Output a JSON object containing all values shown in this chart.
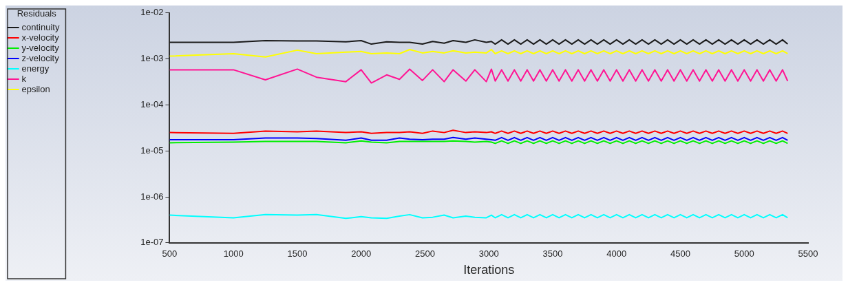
{
  "chart_data": {
    "type": "line",
    "legend_title": "Residuals",
    "xlabel": "Iterations",
    "log": "y",
    "legend": "top left",
    "grid": false,
    "marker": "none",
    "line_style": "solid",
    "xlim": [
      500,
      5500
    ],
    "xticks": [
      500,
      1000,
      1500,
      2000,
      2500,
      3000,
      3500,
      4000,
      4500,
      5000,
      5500
    ],
    "ylim": [
      1e-07,
      0.01
    ],
    "yticks": [
      {
        "value": 1e-07,
        "label": "1e-07"
      },
      {
        "value": 1e-06,
        "label": "1e-06"
      },
      {
        "value": 1e-05,
        "label": "1e-05"
      },
      {
        "value": 0.0001,
        "label": "1e-04"
      },
      {
        "value": 0.001,
        "label": "1e-03"
      },
      {
        "value": 0.01,
        "label": "1e-02"
      }
    ],
    "x": [
      500,
      1000,
      1250,
      1500,
      1650,
      1880,
      2000,
      2080,
      2200,
      2300,
      2380,
      2480,
      2560,
      2650,
      2720,
      2820,
      2890,
      2980,
      3020,
      3050,
      3100,
      3150,
      3200,
      3250,
      3300,
      3350,
      3400,
      3450,
      3500,
      3550,
      3600,
      3650,
      3700,
      3750,
      3800,
      3850,
      3900,
      3950,
      4000,
      4050,
      4100,
      4150,
      4200,
      4250,
      4300,
      4350,
      4400,
      4450,
      4500,
      4550,
      4600,
      4650,
      4700,
      4750,
      4800,
      4850,
      4900,
      4950,
      5000,
      5050,
      5100,
      5150,
      5200,
      5250,
      5300,
      5340
    ],
    "series": [
      {
        "name": "continuity",
        "color": "#1a1a1a",
        "values": [
          0.0023,
          0.0023,
          0.0025,
          0.00245,
          0.00245,
          0.00235,
          0.0025,
          0.0021,
          0.00235,
          0.0023,
          0.0023,
          0.0021,
          0.0024,
          0.0022,
          0.0025,
          0.0023,
          0.0026,
          0.0023,
          0.0024,
          0.0021,
          0.0026,
          0.0021,
          0.0026,
          0.0021,
          0.0026,
          0.0021,
          0.0026,
          0.0021,
          0.0026,
          0.0021,
          0.0026,
          0.0021,
          0.0026,
          0.0021,
          0.0026,
          0.0021,
          0.0026,
          0.0021,
          0.0026,
          0.0021,
          0.0026,
          0.0021,
          0.0026,
          0.0021,
          0.0026,
          0.0021,
          0.0026,
          0.0021,
          0.0026,
          0.0021,
          0.0026,
          0.0021,
          0.0026,
          0.0021,
          0.0026,
          0.0021,
          0.0026,
          0.0021,
          0.0026,
          0.0021,
          0.0026,
          0.0021,
          0.0026,
          0.0021,
          0.0026,
          0.0021
        ]
      },
      {
        "name": "x-velocity",
        "color": "#ff0000",
        "values": [
          2.5e-05,
          2.4e-05,
          2.7e-05,
          2.6e-05,
          2.7e-05,
          2.5e-05,
          2.6e-05,
          2.4e-05,
          2.5e-05,
          2.5e-05,
          2.6e-05,
          2.4e-05,
          2.7e-05,
          2.5e-05,
          2.8e-05,
          2.5e-05,
          2.6e-05,
          2.5e-05,
          2.6e-05,
          2.4e-05,
          2.7e-05,
          2.4e-05,
          2.7e-05,
          2.4e-05,
          2.7e-05,
          2.4e-05,
          2.7e-05,
          2.4e-05,
          2.7e-05,
          2.4e-05,
          2.7e-05,
          2.4e-05,
          2.7e-05,
          2.4e-05,
          2.7e-05,
          2.4e-05,
          2.7e-05,
          2.4e-05,
          2.7e-05,
          2.4e-05,
          2.7e-05,
          2.4e-05,
          2.7e-05,
          2.4e-05,
          2.7e-05,
          2.4e-05,
          2.7e-05,
          2.4e-05,
          2.7e-05,
          2.4e-05,
          2.7e-05,
          2.4e-05,
          2.7e-05,
          2.4e-05,
          2.7e-05,
          2.4e-05,
          2.7e-05,
          2.4e-05,
          2.7e-05,
          2.4e-05,
          2.7e-05,
          2.4e-05,
          2.7e-05,
          2.4e-05,
          2.7e-05,
          2.4e-05
        ]
      },
      {
        "name": "y-velocity",
        "color": "#00ee00",
        "values": [
          1.5e-05,
          1.55e-05,
          1.6e-05,
          1.6e-05,
          1.6e-05,
          1.5e-05,
          1.65e-05,
          1.55e-05,
          1.5e-05,
          1.6e-05,
          1.6e-05,
          1.6e-05,
          1.6e-05,
          1.6e-05,
          1.65e-05,
          1.6e-05,
          1.55e-05,
          1.6e-05,
          1.55e-05,
          1.45e-05,
          1.65e-05,
          1.45e-05,
          1.65e-05,
          1.45e-05,
          1.65e-05,
          1.45e-05,
          1.65e-05,
          1.45e-05,
          1.65e-05,
          1.45e-05,
          1.65e-05,
          1.45e-05,
          1.65e-05,
          1.45e-05,
          1.65e-05,
          1.45e-05,
          1.65e-05,
          1.45e-05,
          1.65e-05,
          1.45e-05,
          1.65e-05,
          1.45e-05,
          1.65e-05,
          1.45e-05,
          1.65e-05,
          1.45e-05,
          1.65e-05,
          1.45e-05,
          1.65e-05,
          1.45e-05,
          1.65e-05,
          1.45e-05,
          1.65e-05,
          1.45e-05,
          1.65e-05,
          1.45e-05,
          1.65e-05,
          1.45e-05,
          1.65e-05,
          1.45e-05,
          1.65e-05,
          1.45e-05,
          1.65e-05,
          1.45e-05,
          1.65e-05,
          1.45e-05
        ]
      },
      {
        "name": "z-velocity",
        "color": "#0000ff",
        "values": [
          1.75e-05,
          1.75e-05,
          1.9e-05,
          1.9e-05,
          1.85e-05,
          1.7e-05,
          1.9e-05,
          1.7e-05,
          1.7e-05,
          1.9e-05,
          1.8e-05,
          1.75e-05,
          1.8e-05,
          1.8e-05,
          1.95e-05,
          1.8e-05,
          1.9e-05,
          1.8e-05,
          1.75e-05,
          1.7e-05,
          1.95e-05,
          1.7e-05,
          1.95e-05,
          1.7e-05,
          1.95e-05,
          1.7e-05,
          1.95e-05,
          1.7e-05,
          1.95e-05,
          1.7e-05,
          1.95e-05,
          1.7e-05,
          1.95e-05,
          1.7e-05,
          1.95e-05,
          1.7e-05,
          1.95e-05,
          1.7e-05,
          1.95e-05,
          1.7e-05,
          1.95e-05,
          1.7e-05,
          1.95e-05,
          1.7e-05,
          1.95e-05,
          1.7e-05,
          1.95e-05,
          1.7e-05,
          1.95e-05,
          1.7e-05,
          1.95e-05,
          1.7e-05,
          1.95e-05,
          1.7e-05,
          1.95e-05,
          1.7e-05,
          1.95e-05,
          1.7e-05,
          1.95e-05,
          1.7e-05,
          1.95e-05,
          1.7e-05,
          1.95e-05,
          1.7e-05,
          1.95e-05,
          1.7e-05
        ]
      },
      {
        "name": "energy",
        "color": "#00ffff",
        "values": [
          4e-07,
          3.5e-07,
          4.1e-07,
          4e-07,
          4.1e-07,
          3.4e-07,
          3.7e-07,
          3.5e-07,
          3.4e-07,
          3.8e-07,
          4.1e-07,
          3.5e-07,
          3.6e-07,
          4e-07,
          3.5e-07,
          3.8e-07,
          3.6e-07,
          3.5e-07,
          4e-07,
          3.5e-07,
          4.1e-07,
          3.5e-07,
          4.1e-07,
          3.5e-07,
          4.1e-07,
          3.5e-07,
          4.1e-07,
          3.5e-07,
          4.1e-07,
          3.5e-07,
          4.1e-07,
          3.5e-07,
          4.1e-07,
          3.5e-07,
          4.1e-07,
          3.5e-07,
          4.1e-07,
          3.5e-07,
          4.1e-07,
          3.5e-07,
          4.1e-07,
          3.5e-07,
          4.1e-07,
          3.5e-07,
          4.1e-07,
          3.5e-07,
          4.1e-07,
          3.5e-07,
          4.1e-07,
          3.5e-07,
          4.1e-07,
          3.5e-07,
          4.1e-07,
          3.5e-07,
          4.1e-07,
          3.5e-07,
          4.1e-07,
          3.5e-07,
          4.1e-07,
          3.5e-07,
          4.1e-07,
          3.5e-07,
          4.1e-07,
          3.5e-07,
          4.1e-07,
          3.5e-07
        ]
      },
      {
        "name": "k",
        "color": "#ff1493",
        "values": [
          0.00058,
          0.00058,
          0.00035,
          0.0006,
          0.0004,
          0.00032,
          0.00058,
          0.0003,
          0.00045,
          0.00036,
          0.0006,
          0.00034,
          0.00058,
          0.00032,
          0.00058,
          0.00033,
          0.00058,
          0.00032,
          0.0006,
          0.00033,
          0.00058,
          0.00033,
          0.00058,
          0.00033,
          0.00058,
          0.00033,
          0.00058,
          0.00033,
          0.00058,
          0.00033,
          0.00058,
          0.00033,
          0.00058,
          0.00033,
          0.00058,
          0.00033,
          0.00058,
          0.00033,
          0.00058,
          0.00033,
          0.00058,
          0.00033,
          0.00058,
          0.00033,
          0.00058,
          0.00033,
          0.00058,
          0.00033,
          0.00058,
          0.00033,
          0.00058,
          0.00033,
          0.00058,
          0.00033,
          0.00058,
          0.00033,
          0.00058,
          0.00033,
          0.00058,
          0.00033,
          0.00058,
          0.00033,
          0.00058,
          0.00033,
          0.00058,
          0.00033
        ]
      },
      {
        "name": "epsilon",
        "color": "#ffff00",
        "values": [
          0.00115,
          0.0013,
          0.0011,
          0.00155,
          0.0013,
          0.0014,
          0.00145,
          0.0013,
          0.00135,
          0.0013,
          0.0016,
          0.00135,
          0.00145,
          0.00135,
          0.0015,
          0.00135,
          0.0014,
          0.00135,
          0.0016,
          0.0013,
          0.0015,
          0.0013,
          0.0015,
          0.0013,
          0.0015,
          0.0013,
          0.0015,
          0.0013,
          0.0015,
          0.0013,
          0.0015,
          0.0013,
          0.0015,
          0.0013,
          0.0015,
          0.0013,
          0.0015,
          0.0013,
          0.0015,
          0.0013,
          0.0015,
          0.0013,
          0.0015,
          0.0013,
          0.0015,
          0.0013,
          0.0015,
          0.0013,
          0.0015,
          0.0013,
          0.0015,
          0.0013,
          0.0015,
          0.0013,
          0.0015,
          0.0013,
          0.0015,
          0.0013,
          0.0015,
          0.0013,
          0.0015,
          0.0013,
          0.0015,
          0.0013,
          0.0015,
          0.0013
        ]
      }
    ]
  }
}
